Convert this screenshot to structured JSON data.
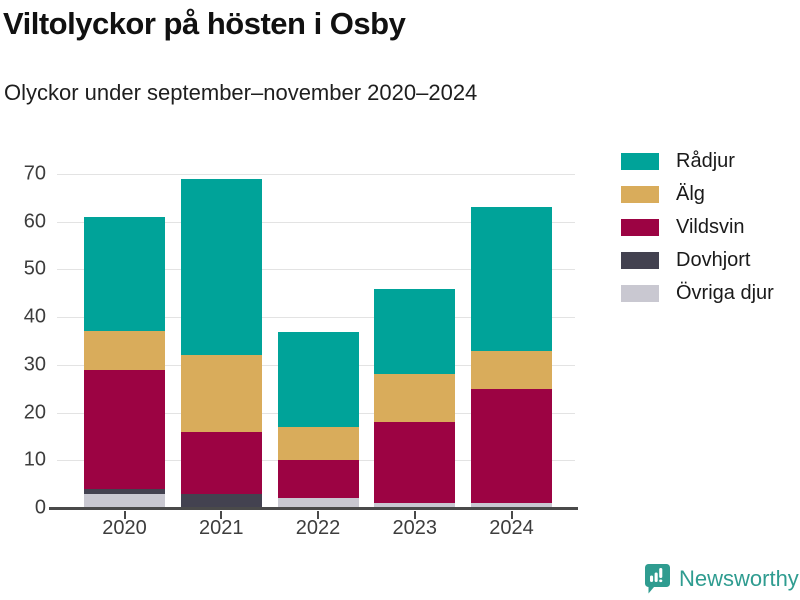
{
  "title": "Viltolyckor på hösten i Osby",
  "subtitle": "Olyckor under september–november 2020–2024",
  "chart_data": {
    "type": "bar",
    "stacked": true,
    "title": "Viltolyckor på hösten i Osby",
    "subtitle": "Olyckor under september–november 2020–2024",
    "categories": [
      "2020",
      "2021",
      "2022",
      "2023",
      "2024"
    ],
    "series": [
      {
        "name": "Rådjur",
        "color": "#00a399",
        "values": [
          24,
          37,
          20,
          18,
          30
        ]
      },
      {
        "name": "Älg",
        "color": "#d9ac5b",
        "values": [
          8,
          16,
          7,
          10,
          8
        ]
      },
      {
        "name": "Vildsvin",
        "color": "#9c0343",
        "values": [
          25,
          13,
          8,
          17,
          24
        ]
      },
      {
        "name": "Dovhjort",
        "color": "#434250",
        "values": [
          1,
          3,
          0,
          0,
          0
        ]
      },
      {
        "name": "Övriga djur",
        "color": "#c9c8d1",
        "values": [
          3,
          0,
          2,
          1,
          1
        ]
      }
    ],
    "totals": [
      61,
      69,
      37,
      46,
      63
    ],
    "stack_order": "series listed top-of-stack first; bottom of stack is Övriga djur",
    "xlabel": "",
    "ylabel": "",
    "ylim": [
      0,
      70
    ],
    "yticks": [
      0,
      10,
      20,
      30,
      40,
      50,
      60,
      70
    ],
    "grid": true,
    "legend_position": "right"
  },
  "branding": {
    "logo_text": "Newsworthy",
    "logo_color": "#2f9c90",
    "logo_icon": "bar-chart-speech-bubble-icon"
  }
}
